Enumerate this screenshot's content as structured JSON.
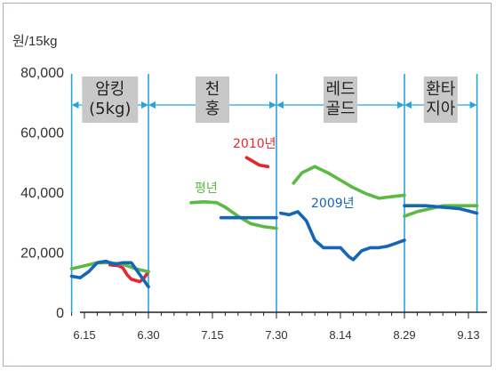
{
  "chart_data": {
    "type": "line",
    "ylabel": "원/15kg",
    "ylim": [
      0,
      80000
    ],
    "y_ticks": [
      "80,000",
      "60,000",
      "40,000",
      "20,000",
      "0"
    ],
    "y_tick_values": [
      80000,
      60000,
      40000,
      20000,
      0
    ],
    "x_ticks": [
      "6.15",
      "6.30",
      "7.15",
      "7.30",
      "8.14",
      "8.29",
      "9.13"
    ],
    "x_tick_days": [
      0,
      15,
      30,
      45,
      60,
      75,
      90
    ],
    "segment_boundaries": [
      -3,
      15,
      45,
      75,
      92
    ],
    "segments": [
      {
        "lines": [
          "암킹",
          "(5kg)"
        ]
      },
      {
        "lines": [
          "천",
          "홍"
        ]
      },
      {
        "lines": [
          "레드",
          "골드"
        ]
      },
      {
        "lines": [
          "환타",
          "지아"
        ]
      }
    ],
    "colors": {
      "2010": "#e8262b",
      "2009": "#1565b9",
      "avg": "#5bb944",
      "divider": "#29a3db",
      "segment_box": "#c8c8c8"
    },
    "series": [
      {
        "name": "2010년",
        "color": "#e8262b",
        "segments": [
          [
            [
              6,
              15800
            ],
            [
              8,
              15500
            ],
            [
              9,
              14800
            ],
            [
              10,
              12500
            ],
            [
              11,
              11000
            ],
            [
              13,
              10200
            ],
            [
              14,
              11500
            ],
            [
              15,
              13500
            ]
          ],
          [
            [
              38,
              51500
            ],
            [
              41,
              49000
            ],
            [
              43,
              48500
            ]
          ]
        ]
      },
      {
        "name": "평년",
        "color": "#5bb944",
        "segments": [
          [
            [
              -3,
              14500
            ],
            [
              0,
              15500
            ],
            [
              3,
              16500
            ],
            [
              6,
              16500
            ],
            [
              9,
              16000
            ],
            [
              12,
              14500
            ],
            [
              15,
              13500
            ]
          ],
          [
            [
              25,
              36500
            ],
            [
              28,
              36800
            ],
            [
              31,
              36500
            ],
            [
              33,
              35000
            ],
            [
              36,
              32000
            ],
            [
              39,
              29500
            ],
            [
              42,
              28500
            ],
            [
              45,
              28000
            ]
          ],
          [
            [
              49,
              43000
            ],
            [
              51,
              46500
            ],
            [
              54,
              48500
            ],
            [
              57,
              46500
            ],
            [
              60,
              44000
            ],
            [
              63,
              41500
            ],
            [
              66,
              39500
            ],
            [
              69,
              38000
            ],
            [
              72,
              38500
            ],
            [
              75,
              39000
            ]
          ],
          [
            [
              75,
              32000
            ],
            [
              78,
              33500
            ],
            [
              81,
              34500
            ],
            [
              84,
              35500
            ],
            [
              87,
              35500
            ],
            [
              92,
              35500
            ]
          ]
        ]
      },
      {
        "name": "2009년",
        "color": "#1565b9",
        "segments": [
          [
            [
              -3,
              12000
            ],
            [
              -1,
              11500
            ],
            [
              1,
              13500
            ],
            [
              3,
              16500
            ],
            [
              5,
              17000
            ],
            [
              7,
              16000
            ],
            [
              9,
              16500
            ],
            [
              11,
              16500
            ],
            [
              13,
              12500
            ],
            [
              15,
              8500
            ]
          ],
          [
            [
              32,
              31500
            ],
            [
              45,
              31500
            ]
          ],
          [
            [
              46,
              33000
            ],
            [
              48,
              32500
            ],
            [
              50,
              33500
            ],
            [
              52,
              30500
            ],
            [
              54,
              24000
            ],
            [
              56,
              21500
            ],
            [
              58,
              21500
            ],
            [
              60,
              21500
            ],
            [
              62,
              18500
            ],
            [
              63,
              17500
            ],
            [
              65,
              20500
            ],
            [
              67,
              21500
            ],
            [
              69,
              21500
            ],
            [
              71,
              22000
            ],
            [
              73,
              23000
            ],
            [
              75,
              24000
            ]
          ],
          [
            [
              75,
              35500
            ],
            [
              80,
              35500
            ],
            [
              84,
              35000
            ],
            [
              88,
              34500
            ],
            [
              92,
              33000
            ]
          ]
        ]
      }
    ],
    "annotations": [
      {
        "text": "2010년",
        "series": "2010"
      },
      {
        "text": "평년",
        "series": "avg"
      },
      {
        "text": "2009년",
        "series": "2009"
      }
    ]
  }
}
